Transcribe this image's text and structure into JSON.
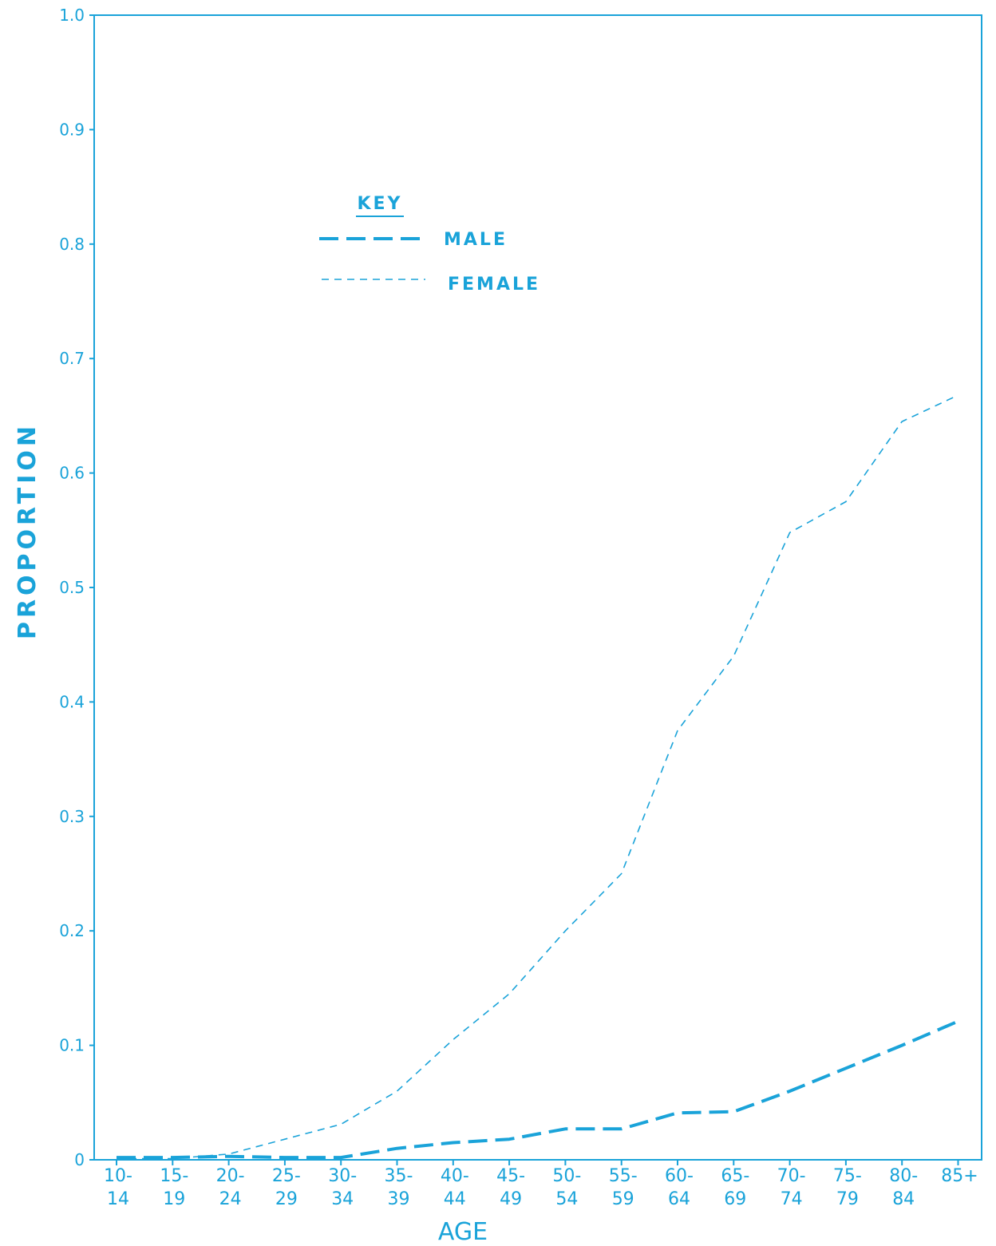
{
  "colors": {
    "ink": "#1aa3d9",
    "paper": "#ffffff"
  },
  "chart_data": {
    "type": "line",
    "xlabel": "AGE",
    "ylabel": "PROPORTION",
    "ylim": [
      0,
      1.0
    ],
    "y_ticks": [
      "0",
      "0.1",
      "0.2",
      "0.3",
      "0.4",
      "0.5",
      "0.6",
      "0.7",
      "0.8",
      "0.9",
      "1.0"
    ],
    "y_tick_values": [
      0,
      0.1,
      0.2,
      0.3,
      0.4,
      0.5,
      0.6,
      0.7,
      0.8,
      0.9,
      1.0
    ],
    "categories": [
      [
        "10-",
        "14"
      ],
      [
        "15-",
        "19"
      ],
      [
        "20-",
        "24"
      ],
      [
        "25-",
        "29"
      ],
      [
        "30-",
        "34"
      ],
      [
        "35-",
        "39"
      ],
      [
        "40-",
        "44"
      ],
      [
        "45-",
        "49"
      ],
      [
        "50-",
        "54"
      ],
      [
        "55-",
        "59"
      ],
      [
        "60-",
        "64"
      ],
      [
        "65-",
        "69"
      ],
      [
        "70-",
        "74"
      ],
      [
        "75-",
        "79"
      ],
      [
        "80-",
        "84"
      ],
      [
        "85+",
        ""
      ]
    ],
    "grid": false,
    "legend": {
      "title": "KEY",
      "placement": "upper-left"
    },
    "series": [
      {
        "name": "MALE",
        "style": "long-dash",
        "values": [
          0.002,
          0.002,
          0.003,
          0.002,
          0.002,
          0.01,
          0.015,
          0.018,
          0.027,
          0.027,
          0.041,
          0.042,
          0.06,
          0.08,
          0.1,
          0.121
        ]
      },
      {
        "name": "FEMALE",
        "style": "short-dash",
        "values": [
          0.001,
          0.001,
          0.005,
          0.018,
          0.031,
          0.06,
          0.105,
          0.145,
          0.2,
          0.25,
          0.375,
          0.44,
          0.548,
          0.575,
          0.645,
          0.668
        ]
      }
    ]
  }
}
